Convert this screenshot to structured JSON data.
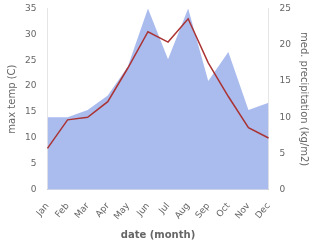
{
  "chart_data": {
    "type": "line",
    "xlabel": "date (month)",
    "ylabel": "max temp (C)",
    "y2label": "med. precipitation (kg/m2)",
    "categories": [
      "Jan",
      "Feb",
      "Mar",
      "Apr",
      "May",
      "Jun",
      "Jul",
      "Aug",
      "Sep",
      "Oct",
      "Nov",
      "Dec"
    ],
    "series": [
      {
        "type": "area",
        "axis": "y2",
        "color": "#aabbee",
        "values": [
          10,
          10,
          11,
          13,
          17,
          25,
          18,
          25,
          15,
          19,
          11,
          12
        ]
      },
      {
        "type": "line",
        "color": "#aa3333",
        "values": [
          8.0,
          13.5,
          14.0,
          17.0,
          23.5,
          30.5,
          28.5,
          33.0,
          24.5,
          18.0,
          12.0,
          10.0
        ]
      }
    ],
    "ylim": [
      0,
      35
    ],
    "yticks": [
      0,
      5,
      10,
      15,
      20,
      25,
      30,
      35
    ],
    "y2lim": [
      0,
      25
    ],
    "y2ticks": [
      0,
      5,
      10,
      15,
      20,
      25
    ],
    "grid": false
  }
}
